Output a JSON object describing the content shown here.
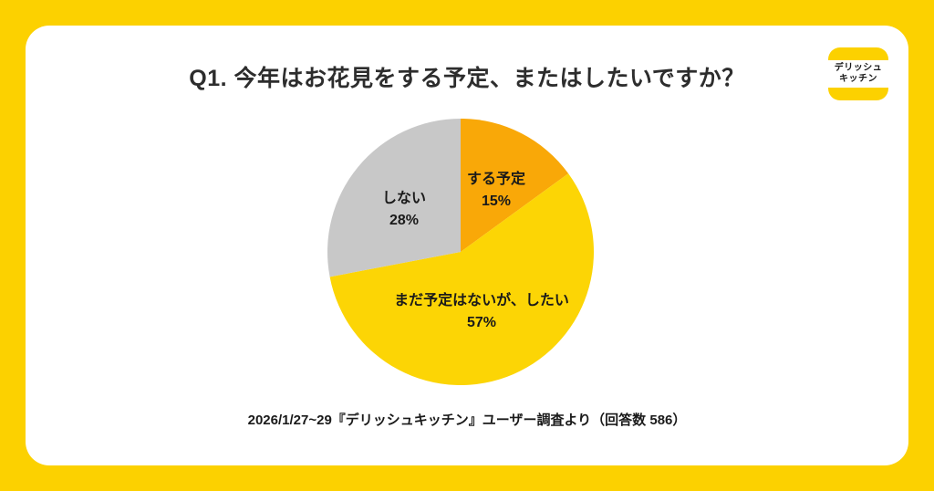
{
  "frame": {
    "background_color": "#FCD100"
  },
  "header": {
    "title": "Q1. 今年はお花見をする予定、またはしたいですか？"
  },
  "logo": {
    "name": "delish-kitchen-logo",
    "line1": "デリッシュ",
    "line2": "キッチン",
    "accent_color": "#FCD100"
  },
  "chart_data": {
    "type": "pie",
    "title": "Q1. 今年はお花見をする予定、またはしたいですか？",
    "labels": [
      "する予定",
      "まだ予定はないが、したい",
      "しない"
    ],
    "values": [
      15,
      57,
      28
    ],
    "colors": [
      "#F9A808",
      "#FCD505",
      "#C8C8C8"
    ],
    "start_angle_deg": -90,
    "direction": "clockwise",
    "legend": "none",
    "display_labels": [
      {
        "text": "する予定",
        "pct": "15%"
      },
      {
        "text": "まだ予定はないが、したい",
        "pct": "57%"
      },
      {
        "text": "しない",
        "pct": "28%"
      }
    ]
  },
  "footer": {
    "source": "2026/1/27~29『デリッシュキッチン』ユーザー調査より（回答数 586）"
  }
}
